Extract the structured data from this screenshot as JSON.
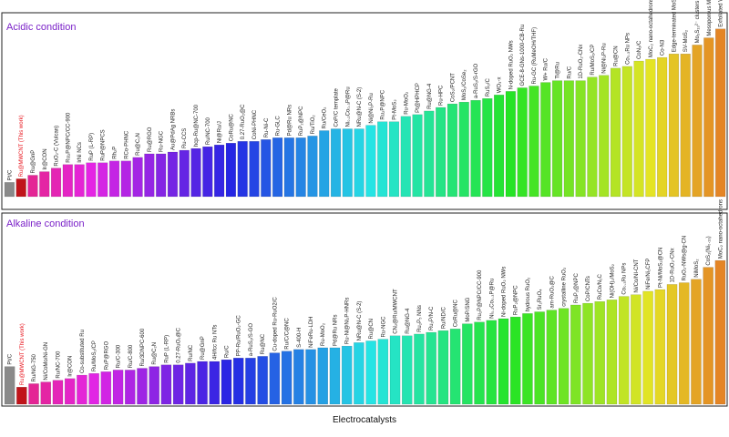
{
  "xlabel": "Electrocatalysts",
  "highlight_category": "Ru@MWCNT",
  "highlight_note": "(This work)",
  "chart_data": [
    {
      "type": "bar",
      "title": "Acidic condition",
      "categories": [
        "Pt/C",
        "Ru@MWCNT",
        "Ru@GnP",
        "Ir@CON",
        "RuO₂-C (Vulcan)",
        "Ru₂P@NPC/CC-900",
        "IrNi NCs",
        "RuP (L-RP)",
        "RuP@NPCS",
        "Rh₂P",
        "RCo-PHNC",
        "Ru@C₂N",
        "Ru@RGO",
        "Ru-NGC",
        "Au@PdAg NRBs",
        "Ru-CCS",
        "hcp-Ru@NC-700",
        "Ru/NC-700",
        "Ni@Ru/J",
        "CoRu@NC",
        "0.27-RuO₂@C",
        "CoNi-PHNC",
        "Ru-Ni-C",
        "Ru-GLC",
        "Pd@Ru NRs",
        "RuP₂@NPC",
        "Ru/TiO₂",
        "Ru/CeO₂",
        "CoP/C template",
        "Ni₀.₂Co₀.₃P@Ru",
        "NRu@N-C (S-2)",
        "Ni@Ni₂P-Ru",
        "Ru₂P@NPC",
        "Pt-MoS₂",
        "Ru-MoO₂",
        "Pt@HPHCP",
        "Ru@NG-4",
        "Ru-HPC",
        "CoS₂/PCNT",
        "MoS₂/CoSe₂",
        "a-RuS₂/S-rGO",
        "RuS₂/C",
        "WO₃-x",
        "N-doped RuO₂ NWs",
        "GCE-8-GNs-1000-CB-Ru",
        "Ru-GC (RuMeOH/THF)",
        "W+ Ru/C",
        "Ti@Ru",
        "Ru/C",
        "1D-RuO₂-CNx",
        "Ru/MoS₂/CP",
        "Ni@Ni₂P-Ru",
        "Ru@CN",
        "Co₀.₃Ru NPs",
        "CoN₂/C",
        "MoC₂ nano-octahedrons",
        "Co-N3",
        "Edge-terminated MoS₂",
        "SV-MoS₂",
        "Mo₃S₁₃²⁻ clusters",
        "Mesoporous MoS₂",
        "Exfoliated WS₂ nanosheets"
      ],
      "values": [
        8,
        10,
        12,
        14,
        16,
        18,
        18,
        19,
        19,
        20,
        20,
        22,
        24,
        24,
        25,
        26,
        27,
        28,
        29,
        30,
        31,
        31,
        32,
        33,
        33,
        33,
        34,
        37,
        38,
        38,
        38,
        40,
        42,
        42,
        45,
        46,
        48,
        50,
        52,
        53,
        54,
        55,
        57,
        59,
        61,
        62,
        64,
        65,
        65,
        65,
        67,
        68,
        72,
        73,
        76,
        77,
        78,
        80,
        80,
        85,
        89,
        94
      ],
      "ylim": [
        0,
        100
      ]
    },
    {
      "type": "bar",
      "title": "Alkaline condition",
      "categories": [
        "Pt/C",
        "Ru@MWCNT",
        "Ru/NG-750",
        "Ni/CoMo/Ni-GN",
        "Ru/NC-700",
        "Ir@CON",
        "Co-substituted Ru",
        "Ru/MoS₂/CP",
        "RuP@RGO",
        "Ru/C-300",
        "Ru/C-800",
        "Ru/3DNPC-600",
        "Ru@C₂N",
        "RuP (L-RP)",
        "0.27-RuO₂@C",
        "Ru/NC",
        "Ru@GnP",
        "4H/fcc Ru NTs",
        "Ru/C",
        "PP-Ru/RuO₂-GC",
        "a-RuS₂/S-GO",
        "Ru@NC",
        "Cu-doped Ru-RuO2/C",
        "Ru/C/C@NC",
        "S-400-H",
        "NiFeRu-LDH",
        "Ru-MoO₂",
        "Pd@Ru NRs",
        "Ru-Ni@Ni₂P-HNRs",
        "NRu@N-C (S-2)",
        "Ru@CN",
        "Ru-NGC",
        "CN₂@Ru/MWCNT",
        "Ru@NG-4",
        "Ru₂P₅ NNs",
        "Ru₂P/N-C",
        "Ru/ND/C",
        "CoRu@NC",
        "MoP/SNG",
        "Ru₂P@NPC/CC-900",
        "Ni₀.₂Co₀.₃P@Ru",
        "Ni-doped RuO₂ NWs",
        "RuP₂@NPC",
        "hydrous RuO₂",
        "Sr₂RuO₄",
        "am-RuO₂@C",
        "crystalline RuO₂",
        "RuP₂@NPC",
        "CoP/CNTs",
        "RuCo/N₂C",
        "Ni(OH)₂/MoS₂",
        "Co₀.₃Ru NPs",
        "Ni/Co/NI-CNT",
        "NiFe/Ni₂CFP",
        "Pt-Ni/MoS₂@CN",
        "1D-RuO₂-CNx",
        "RuO₂-NWs@g-CN",
        "NiMoS₂",
        "CoS₂(Ni₀.₁₃)",
        "MoC₂ nano-octahedrons"
      ],
      "values": [
        22,
        10,
        12,
        13,
        14,
        15,
        17,
        18,
        19,
        20,
        20,
        21,
        22,
        23,
        23,
        24,
        25,
        25,
        26,
        27,
        27,
        28,
        30,
        31,
        32,
        32,
        33,
        33,
        34,
        36,
        37,
        38,
        40,
        40,
        41,
        42,
        43,
        44,
        47,
        48,
        49,
        50,
        51,
        53,
        54,
        55,
        56,
        58,
        59,
        60,
        61,
        63,
        64,
        66,
        67,
        70,
        71,
        73,
        80,
        84
      ],
      "ylim": [
        0,
        100
      ]
    }
  ]
}
